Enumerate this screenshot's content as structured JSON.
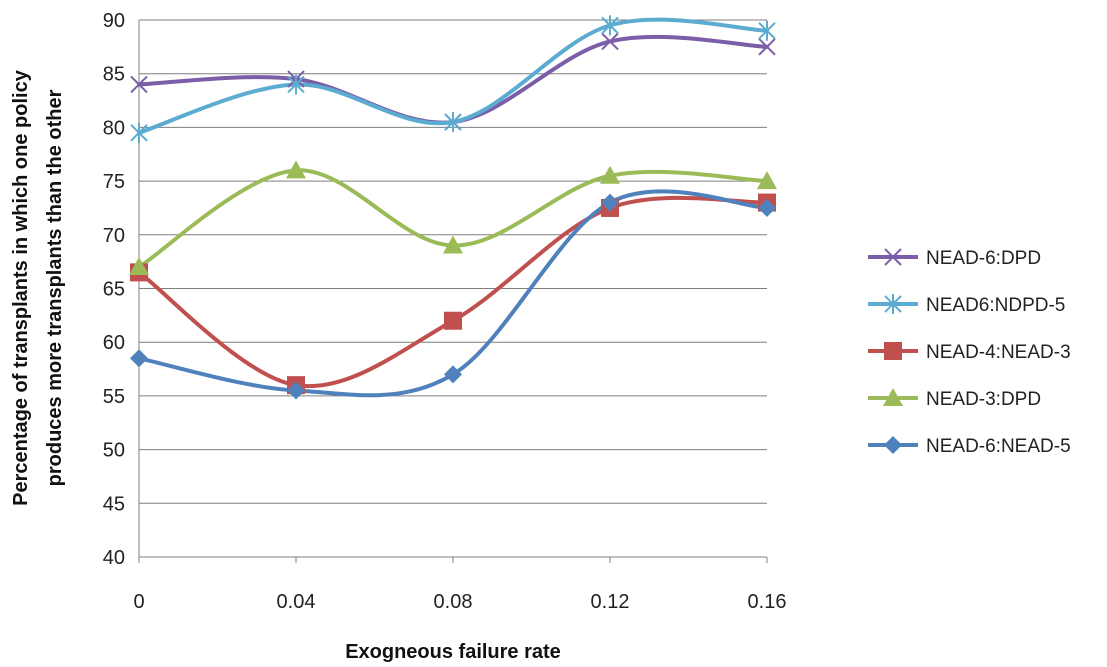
{
  "chart_data": {
    "type": "line",
    "smooth": true,
    "title": "",
    "xlabel": "Exogneous failure rate",
    "ylabel_lines": [
      "Percentage of transplants in which one policy",
      "produces more transplants than the other"
    ],
    "x": [
      "0",
      "0.04",
      "0.08",
      "0.12",
      "0.16"
    ],
    "ylim": [
      40,
      90
    ],
    "yticks": [
      40,
      45,
      50,
      55,
      60,
      65,
      70,
      75,
      80,
      85,
      90
    ],
    "grid": "horizontal",
    "legend_position": "right",
    "series": [
      {
        "name": "NEAD-6:DPD",
        "values": [
          84,
          84.5,
          80.5,
          88,
          87.5
        ],
        "color": "#7b5ea7",
        "marker": "x"
      },
      {
        "name": "NEAD6:NDPD-5",
        "values": [
          79.5,
          84,
          80.5,
          89.5,
          89
        ],
        "color": "#5bacd0",
        "marker": "asterisk"
      },
      {
        "name": "NEAD-4:NEAD-3",
        "values": [
          66.5,
          56,
          62,
          72.5,
          73
        ],
        "color": "#c0504d",
        "marker": "square"
      },
      {
        "name": "NEAD-3:DPD",
        "values": [
          67,
          76,
          69,
          75.5,
          75
        ],
        "color": "#9bbb59",
        "marker": "triangle"
      },
      {
        "name": "NEAD-6:NEAD-5",
        "values": [
          58.5,
          55.5,
          57,
          73,
          72.5
        ],
        "color": "#4f81bd",
        "marker": "diamond"
      }
    ]
  }
}
